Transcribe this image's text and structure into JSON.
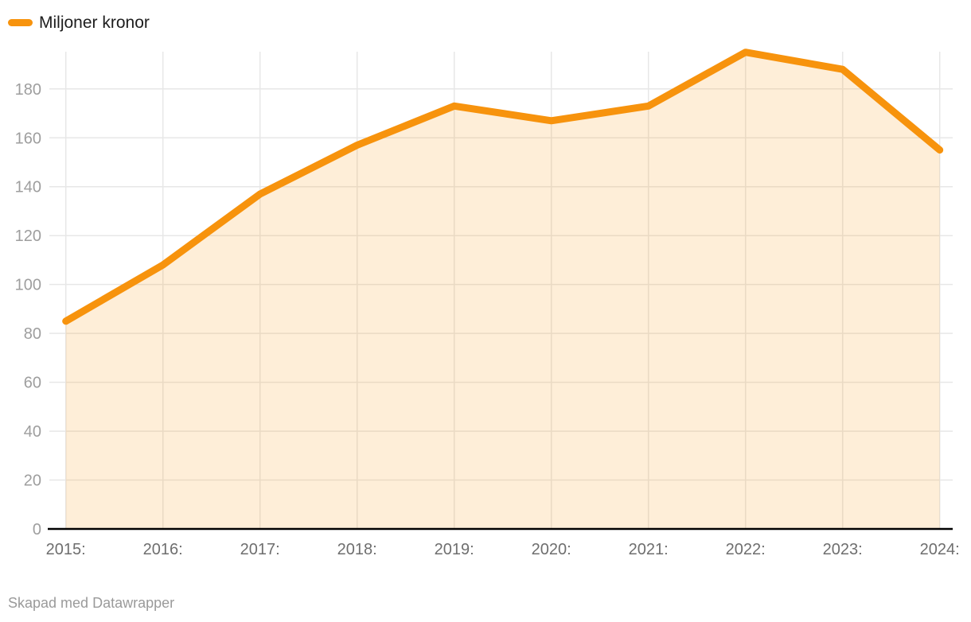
{
  "legend": {
    "label": "Miljoner kronor"
  },
  "footer": {
    "text": "Skapad med Datawrapper"
  },
  "colors": {
    "line": "#F7930D",
    "area": "rgba(247,147,13,0.16)",
    "grid": "#E7E7E7",
    "axis": "#000000",
    "y_tick_text": "#9E9E9E",
    "x_tick_text": "#6E6E6E",
    "legend_text": "#1D1D1D",
    "footer_text": "#9A9A9A"
  },
  "chart_data": {
    "type": "area",
    "title": "",
    "xlabel": "",
    "ylabel": "",
    "categories": [
      "2015:",
      "2016:",
      "2017:",
      "2018:",
      "2019:",
      "2020:",
      "2021:",
      "2022:",
      "2023:",
      "2024:"
    ],
    "series": [
      {
        "name": "Miljoner kronor",
        "values": [
          85,
          108,
          137,
          157,
          173,
          167,
          173,
          195,
          188,
          155
        ]
      }
    ],
    "ylim": [
      0,
      196
    ],
    "y_ticks": [
      0,
      20,
      40,
      60,
      80,
      100,
      120,
      140,
      160,
      180
    ],
    "grid": true,
    "legend_position": "top-left",
    "attribution": "Skapad med Datawrapper"
  }
}
